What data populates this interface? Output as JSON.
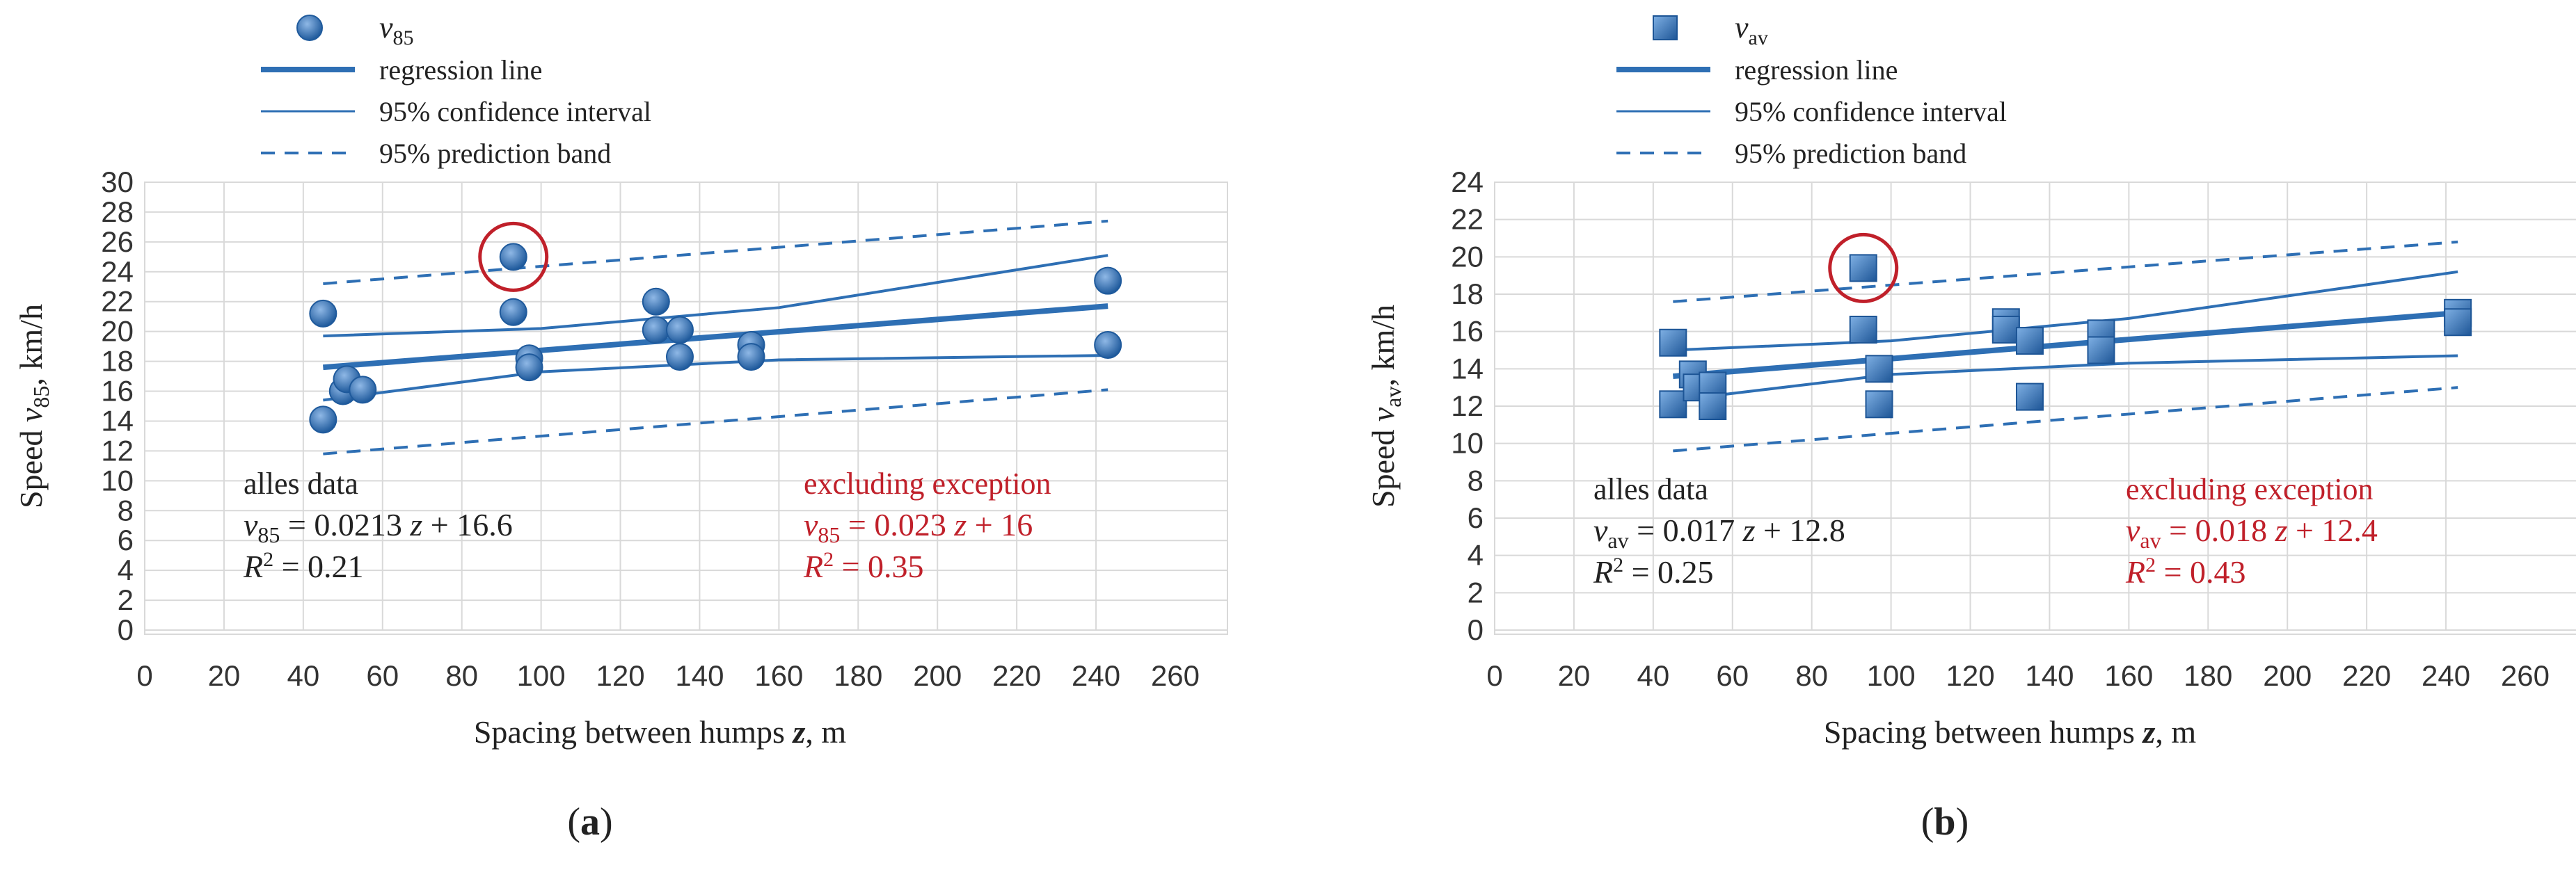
{
  "colors": {
    "series": "#2e6fb4",
    "exception": "#c0202a",
    "grid": "#d9d9d9",
    "text": "#222222"
  },
  "chart_data": [
    {
      "panel_label": "(a)",
      "type": "scatter",
      "xlabel": "Spacing between humps z, m",
      "xlabel_parts": {
        "pre": "Spacing between humps ",
        "var": "z",
        "post": ", m"
      },
      "ylabel": "Speed v85, km/h",
      "ylabel_parts": {
        "pre": "Speed ",
        "var": "v",
        "sub": "85",
        "post": ", km/h"
      },
      "xlim": [
        0,
        260
      ],
      "ylim": [
        0,
        30
      ],
      "xticks": [
        "0",
        "20",
        "40",
        "60",
        "80",
        "100",
        "120",
        "140",
        "160",
        "180",
        "200",
        "220",
        "240",
        "260"
      ],
      "yticks": [
        "0",
        "2",
        "4",
        "6",
        "8",
        "10",
        "12",
        "14",
        "16",
        "18",
        "20",
        "22",
        "24",
        "26",
        "28",
        "30"
      ],
      "marker": "circle",
      "legend": [
        {
          "kind": "marker",
          "var": "v",
          "sub": "85",
          "label": "v85"
        },
        {
          "kind": "thick",
          "label": "regression line"
        },
        {
          "kind": "thin",
          "label": "95% confidence interval"
        },
        {
          "kind": "dashed",
          "label": "95% prediction band"
        }
      ],
      "points": [
        {
          "x": 45,
          "y": 21.2
        },
        {
          "x": 45,
          "y": 14.1
        },
        {
          "x": 50,
          "y": 16.0
        },
        {
          "x": 51,
          "y": 16.8
        },
        {
          "x": 55,
          "y": 16.1
        },
        {
          "x": 93,
          "y": 25.0
        },
        {
          "x": 93,
          "y": 21.3
        },
        {
          "x": 97,
          "y": 18.2
        },
        {
          "x": 97,
          "y": 17.6
        },
        {
          "x": 129,
          "y": 22.0
        },
        {
          "x": 129,
          "y": 20.1
        },
        {
          "x": 135,
          "y": 20.1
        },
        {
          "x": 135,
          "y": 18.3
        },
        {
          "x": 153,
          "y": 19.1
        },
        {
          "x": 153,
          "y": 18.3
        },
        {
          "x": 243,
          "y": 23.4
        },
        {
          "x": 243,
          "y": 19.1
        }
      ],
      "exception": {
        "x": 93,
        "y": 25.0
      },
      "regression": [
        [
          45,
          17.6
        ],
        [
          243,
          21.7
        ]
      ],
      "ci_upper": [
        [
          45,
          19.7
        ],
        [
          100,
          20.2
        ],
        [
          160,
          21.6
        ],
        [
          243,
          25.1
        ]
      ],
      "ci_lower": [
        [
          45,
          15.4
        ],
        [
          100,
          17.3
        ],
        [
          160,
          18.1
        ],
        [
          243,
          18.4
        ]
      ],
      "pb_upper": [
        [
          45,
          23.2
        ],
        [
          243,
          27.4
        ]
      ],
      "pb_lower": [
        [
          45,
          11.8
        ],
        [
          243,
          16.1
        ]
      ],
      "annotations": {
        "all": {
          "title": "alles data",
          "eq_var": "v",
          "eq_sub": "85",
          "eq_rhs": "= 0.0213",
          "eq_z": "z",
          "eq_tail": "+ 16.6",
          "r2_val": "= 0.21"
        },
        "excl": {
          "title": "excluding exception",
          "eq_var": "v",
          "eq_sub": "85",
          "eq_rhs": "= 0.023",
          "eq_z": "z",
          "eq_tail": "+ 16",
          "r2_val": "= 0.35"
        }
      }
    },
    {
      "panel_label": "(b)",
      "type": "scatter",
      "xlabel": "Spacing between humps z, m",
      "xlabel_parts": {
        "pre": "Spacing between humps ",
        "var": "z",
        "post": ", m"
      },
      "ylabel": "Speed vav, km/h",
      "ylabel_parts": {
        "pre": "Speed ",
        "var": "v",
        "sub": "av",
        "post": ", km/h"
      },
      "xlim": [
        0,
        260
      ],
      "ylim": [
        0,
        24
      ],
      "xticks": [
        "0",
        "20",
        "40",
        "60",
        "80",
        "100",
        "120",
        "140",
        "160",
        "180",
        "200",
        "220",
        "240",
        "260"
      ],
      "yticks": [
        "0",
        "2",
        "4",
        "6",
        "8",
        "10",
        "12",
        "14",
        "16",
        "18",
        "20",
        "22",
        "24"
      ],
      "marker": "square",
      "legend": [
        {
          "kind": "marker",
          "var": "v",
          "sub": "av",
          "label": "vav"
        },
        {
          "kind": "thick",
          "label": "regression line"
        },
        {
          "kind": "thin",
          "label": "95% confidence interval"
        },
        {
          "kind": "dashed",
          "label": "95% prediction band"
        }
      ],
      "points": [
        {
          "x": 45,
          "y": 15.4
        },
        {
          "x": 45,
          "y": 12.1
        },
        {
          "x": 50,
          "y": 13.7
        },
        {
          "x": 51,
          "y": 13.0
        },
        {
          "x": 55,
          "y": 13.1
        },
        {
          "x": 55,
          "y": 12.0
        },
        {
          "x": 93,
          "y": 19.4
        },
        {
          "x": 93,
          "y": 16.1
        },
        {
          "x": 97,
          "y": 14.0
        },
        {
          "x": 97,
          "y": 12.1
        },
        {
          "x": 129,
          "y": 16.5
        },
        {
          "x": 129,
          "y": 16.1
        },
        {
          "x": 135,
          "y": 15.5
        },
        {
          "x": 135,
          "y": 12.5
        },
        {
          "x": 153,
          "y": 15.9
        },
        {
          "x": 153,
          "y": 15.0
        },
        {
          "x": 243,
          "y": 17.0
        },
        {
          "x": 243,
          "y": 16.5
        }
      ],
      "exception": {
        "x": 93,
        "y": 19.4
      },
      "regression": [
        [
          45,
          13.6
        ],
        [
          243,
          17.0
        ]
      ],
      "ci_upper": [
        [
          45,
          15.0
        ],
        [
          100,
          15.5
        ],
        [
          160,
          16.7
        ],
        [
          243,
          19.2
        ]
      ],
      "ci_lower": [
        [
          45,
          12.3
        ],
        [
          100,
          13.7
        ],
        [
          160,
          14.3
        ],
        [
          243,
          14.7
        ]
      ],
      "pb_upper": [
        [
          45,
          17.6
        ],
        [
          243,
          20.8
        ]
      ],
      "pb_lower": [
        [
          45,
          9.6
        ],
        [
          243,
          13.0
        ]
      ],
      "annotations": {
        "all": {
          "title": "alles data",
          "eq_var": "v",
          "eq_sub": "av",
          "eq_rhs": "= 0.017",
          "eq_z": "z",
          "eq_tail": "+  12.8",
          "r2_val": "= 0.25"
        },
        "excl": {
          "title": "excluding exception",
          "eq_var": "v",
          "eq_sub": "av",
          "eq_rhs": "= 0.018",
          "eq_z": "z",
          "eq_tail": "+  12.4",
          "r2_val": "= 0.43"
        }
      }
    }
  ]
}
